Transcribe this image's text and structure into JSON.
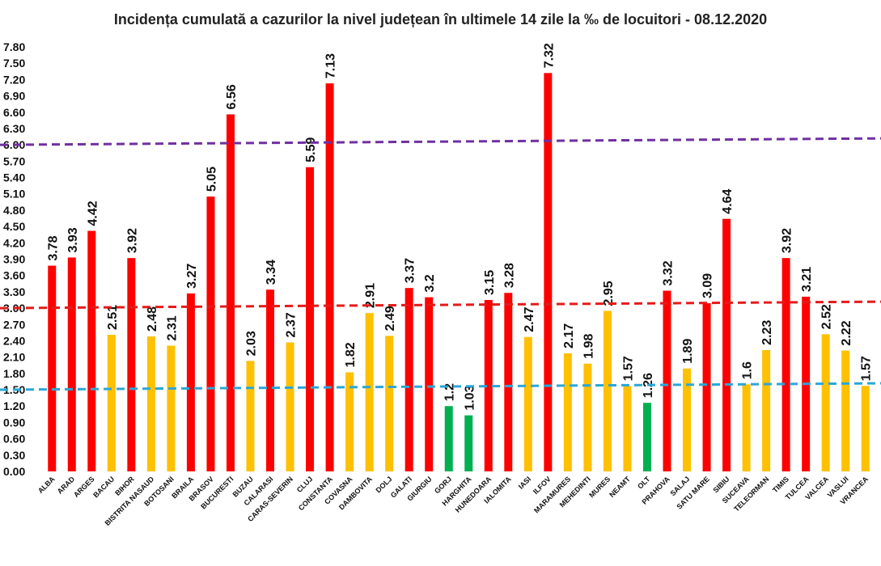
{
  "chart_data": {
    "type": "bar",
    "title": "Incidența cumulată a cazurilor la nivel județean în ultimele 14 zile la ‰ de locuitori - 08.12.2020",
    "xlabel": "",
    "ylabel": "",
    "ylim": [
      0,
      7.8
    ],
    "y_ticks": [
      "0.00",
      "0.30",
      "0.60",
      "0.90",
      "1.20",
      "1.50",
      "1.80",
      "2.10",
      "2.40",
      "2.70",
      "3.00",
      "3.30",
      "3.60",
      "3.90",
      "4.20",
      "4.50",
      "4.80",
      "5.10",
      "5.40",
      "5.70",
      "6.00",
      "6.30",
      "6.60",
      "6.90",
      "7.20",
      "7.50",
      "7.80"
    ],
    "grid": false,
    "categories": [
      "ALBA",
      "ARAD",
      "ARGES",
      "BACAU",
      "BIHOR",
      "BISTRITA NASAUD",
      "BOTOSANI",
      "BRAILA",
      "BRASOV",
      "BUCURESTI",
      "BUZAU",
      "CALARASI",
      "CARAS-SEVERIN",
      "CLUJ",
      "CONSTANTA",
      "COVASNA",
      "DAMBOVITA",
      "DOLJ",
      "GALATI",
      "GIURGIU",
      "GORJ",
      "HARGHITA",
      "HUNEDOARA",
      "IALOMITA",
      "IASI",
      "ILFOV",
      "MARAMURES",
      "MEHEDINTI",
      "MURES",
      "NEAMT",
      "OLT",
      "PRAHOVA",
      "SALAJ",
      "SATU MARE",
      "SIBIU",
      "SUCEAVA",
      "TELEORMAN",
      "TIMIS",
      "TULCEA",
      "VALCEA",
      "VASLUI",
      "VRANCEA"
    ],
    "values": [
      3.78,
      3.93,
      4.42,
      2.51,
      3.92,
      2.48,
      2.31,
      3.27,
      5.05,
      6.56,
      2.03,
      3.34,
      2.37,
      5.59,
      7.13,
      1.82,
      2.91,
      2.49,
      3.37,
      3.2,
      1.2,
      1.03,
      3.15,
      3.28,
      2.47,
      7.32,
      2.17,
      1.98,
      2.95,
      1.57,
      1.26,
      3.32,
      1.89,
      3.09,
      4.64,
      1.6,
      2.23,
      3.92,
      3.21,
      2.52,
      2.22,
      1.57
    ],
    "value_labels": [
      "3.78",
      "3.93",
      "4.42",
      "2.51",
      "3.92",
      "2.48",
      "2.31",
      "3.27",
      "5.05",
      "6.56",
      "2.03",
      "3.34",
      "2.37",
      "5.59",
      "7.13",
      "1.82",
      "2.91",
      "2.49",
      "3.37",
      "3.2",
      "1.2",
      "1.03",
      "3.15",
      "3.28",
      "2.47",
      "7.32",
      "2.17",
      "1.98",
      "2.95",
      "1.57",
      "1.26",
      "3.32",
      "1.89",
      "3.09",
      "4.64",
      "1.6",
      "2.23",
      "3.92",
      "3.21",
      "2.52",
      "2.22",
      "1.57"
    ],
    "colors": {
      "red": "#ff0000",
      "yellow": "#ffc000",
      "green": "#00b050",
      "threshold_high": "#7030a0",
      "threshold_mid": "#e51a1a",
      "threshold_low": "#2aa6d6"
    },
    "thresholds": [
      {
        "value": 6.0,
        "color_key": "threshold_high"
      },
      {
        "value": 3.0,
        "color_key": "threshold_mid"
      },
      {
        "value": 1.5,
        "color_key": "threshold_low"
      }
    ]
  }
}
